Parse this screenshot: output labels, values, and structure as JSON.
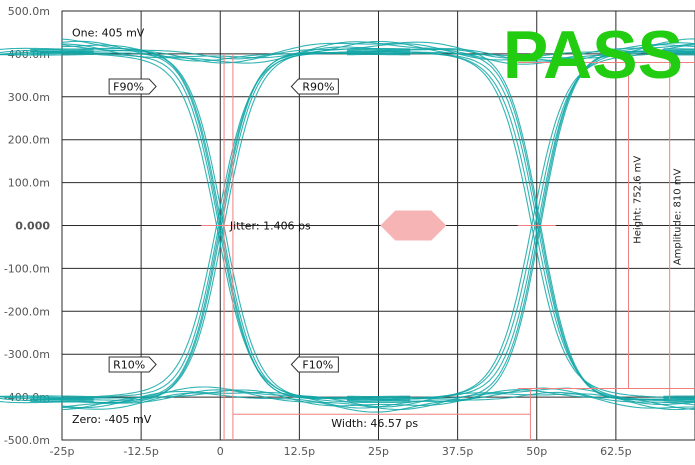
{
  "colors": {
    "trace": "#11a6a6",
    "grid": "#2a2a2a",
    "marker": "#f08080",
    "jitter_fill": "#f7b4b4",
    "pass": "#22cc11",
    "zero_label": "#1aa7b5"
  },
  "badge": {
    "pass_label": "PASS"
  },
  "chart_data": {
    "type": "line",
    "title": "",
    "xlabel": "",
    "ylabel": "",
    "x_unit": "ps",
    "y_unit": "V",
    "xlim": [
      -25,
      75
    ],
    "ylim": [
      -0.5,
      0.5
    ],
    "x_ticks": [
      -25,
      -12.5,
      0,
      12.5,
      25,
      37.5,
      50,
      62.5
    ],
    "x_tick_labels": [
      "-25p",
      "-12.5p",
      "0",
      "12.5p",
      "25p",
      "37.5p",
      "50p",
      "62.5p"
    ],
    "y_ticks": [
      0.5,
      0.4,
      0.3,
      0.2,
      0.1,
      0,
      -0.1,
      -0.2,
      -0.3,
      -0.4,
      -0.5
    ],
    "y_tick_labels": [
      "500.0m",
      "400.0m",
      "300.0m",
      "200.0m",
      "100.0m",
      "0.000",
      "-100.0m",
      "-200.0m",
      "-300.0m",
      "-400.0m",
      "-500.0m"
    ],
    "grid": true,
    "eye": {
      "one_level": 0.405,
      "zero_level": -0.405,
      "crossings_ps": [
        0,
        50
      ],
      "crossing_level": 0.0
    },
    "annotations": {
      "one_label": "One: 405 mV",
      "zero_label": "Zero: -405 mV",
      "jitter_label": "Jitter: 1.406 ps",
      "width_label": "Width: 46.57 ps",
      "height_label": "Height: 752.6 mV",
      "amplitude_label": "Amplitude: 810 mV",
      "flags": [
        {
          "label": "F90%",
          "x": -12.5,
          "y": 0.324
        },
        {
          "label": "R90%",
          "x": 12.5,
          "y": 0.324
        },
        {
          "label": "R10%",
          "x": -12.5,
          "y": -0.324
        },
        {
          "label": "F10%",
          "x": 12.5,
          "y": -0.324
        }
      ]
    }
  }
}
